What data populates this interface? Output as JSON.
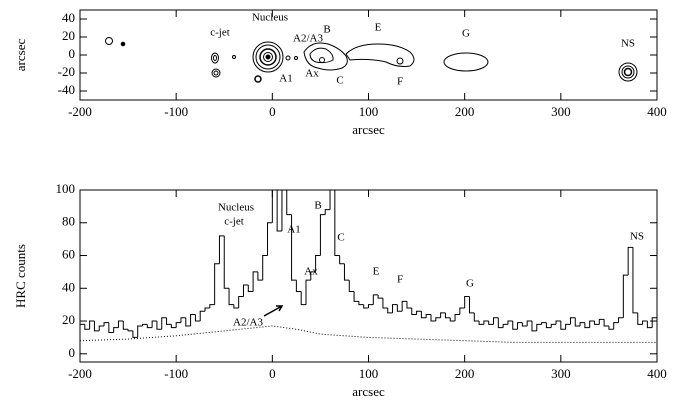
{
  "chart_data": [
    {
      "type": "contour",
      "xlabel": "arcsec",
      "ylabel": "arcsec",
      "xlim": [
        -200,
        400
      ],
      "ylim": [
        -50,
        50
      ],
      "xticks": [
        -200,
        -100,
        0,
        100,
        200,
        300,
        400
      ],
      "yticks": [
        40,
        20,
        0,
        -20,
        -40
      ],
      "annotations": [
        "c-jet",
        "Nucleus",
        "A2/A3",
        "B",
        "E",
        "G",
        "A1",
        "Ax",
        "C",
        "F",
        "NS"
      ]
    },
    {
      "type": "histogram",
      "xlabel": "arcsec",
      "ylabel": "HRC counts",
      "xlim": [
        -200,
        400
      ],
      "ylim": [
        -5,
        100
      ],
      "xticks": [
        -200,
        -100,
        0,
        100,
        200,
        300,
        400
      ],
      "yticks": [
        0,
        20,
        40,
        60,
        80,
        100
      ],
      "bins": [
        -200,
        -195,
        -190,
        -185,
        -180,
        -175,
        -170,
        -165,
        -160,
        -155,
        -150,
        -145,
        -140,
        -135,
        -130,
        -125,
        -120,
        -115,
        -110,
        -105,
        -100,
        -95,
        -90,
        -85,
        -80,
        -75,
        -70,
        -65,
        -60,
        -55,
        -50,
        -45,
        -40,
        -35,
        -30,
        -25,
        -20,
        -15,
        -10,
        -5,
        0,
        5,
        10,
        15,
        20,
        25,
        30,
        35,
        40,
        45,
        50,
        55,
        60,
        65,
        70,
        75,
        80,
        85,
        90,
        95,
        100,
        105,
        110,
        115,
        120,
        125,
        130,
        135,
        140,
        145,
        150,
        155,
        160,
        165,
        170,
        175,
        180,
        185,
        190,
        195,
        200,
        205,
        210,
        215,
        220,
        225,
        230,
        235,
        240,
        245,
        250,
        255,
        260,
        265,
        270,
        275,
        280,
        285,
        290,
        295,
        300,
        305,
        310,
        315,
        320,
        325,
        330,
        335,
        340,
        345,
        350,
        355,
        360,
        365,
        370,
        375,
        380,
        385,
        390,
        395,
        400
      ],
      "values": [
        18,
        15,
        20,
        14,
        17,
        19,
        13,
        16,
        20,
        15,
        14,
        10,
        17,
        18,
        16,
        20,
        15,
        22,
        18,
        16,
        19,
        22,
        17,
        24,
        20,
        26,
        28,
        30,
        55,
        72,
        40,
        30,
        28,
        35,
        42,
        38,
        50,
        45,
        60,
        80,
        100,
        75,
        100,
        85,
        45,
        38,
        30,
        45,
        50,
        60,
        85,
        88,
        100,
        60,
        55,
        45,
        38,
        32,
        30,
        28,
        30,
        36,
        34,
        28,
        25,
        30,
        26,
        32,
        28,
        24,
        26,
        22,
        24,
        20,
        22,
        25,
        22,
        20,
        24,
        28,
        35,
        25,
        20,
        18,
        20,
        18,
        22,
        16,
        18,
        20,
        15,
        19,
        17,
        20,
        14,
        18,
        19,
        16,
        18,
        20,
        15,
        18,
        22,
        17,
        19,
        16,
        20,
        18,
        21,
        17,
        15,
        19,
        22,
        48,
        65,
        25,
        18,
        20,
        16,
        22
      ],
      "background": {
        "x": [
          -200,
          -150,
          -100,
          -50,
          0,
          25,
          50,
          100,
          150,
          200,
          250,
          300,
          350,
          400
        ],
        "values": [
          8,
          9,
          11,
          14,
          17,
          15,
          12,
          10,
          9,
          8,
          7,
          7,
          7,
          7
        ]
      },
      "annotations": [
        "Nucleus",
        "c-jet",
        "A1",
        "B",
        "C",
        "Ax",
        "E",
        "F",
        "G",
        "NS",
        "A2/A3"
      ]
    }
  ]
}
